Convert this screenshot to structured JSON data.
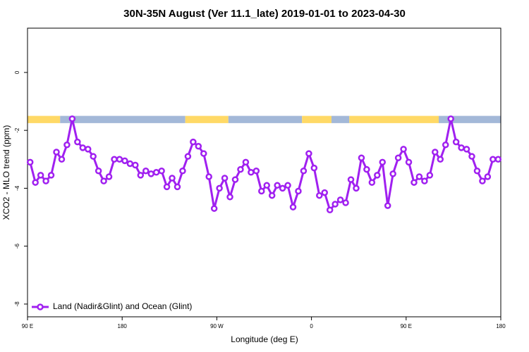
{
  "chart_data": {
    "type": "line",
    "title": "30N-35N August (Ver 11.1_late)   2019-01-01 to 2023-04-30",
    "x_label": "Longitude (deg E)",
    "y_label": "XCO2 - MLO trend (ppm)",
    "x": [
      92.5,
      97.5,
      102.5,
      107.5,
      112.5,
      117.5,
      122.5,
      127.5,
      132.5,
      137.5,
      142.5,
      147.5,
      152.5,
      157.5,
      162.5,
      167.5,
      172.5,
      177.5,
      182.5,
      187.5,
      192.5,
      197.5,
      202.5,
      207.5,
      212.5,
      217.5,
      222.5,
      227.5,
      232.5,
      237.5,
      242.5,
      247.5,
      252.5,
      257.5,
      262.5,
      267.5,
      272.5,
      277.5,
      282.5,
      287.5,
      292.5,
      297.5,
      302.5,
      307.5,
      312.5,
      317.5,
      322.5,
      327.5,
      332.5,
      337.5,
      342.5,
      347.5,
      352.5,
      357.5,
      362.5,
      367.5,
      372.5,
      377.5,
      382.5,
      387.5,
      392.5,
      397.5,
      402.5,
      407.5,
      412.5,
      417.5,
      422.5,
      427.5,
      432.5,
      437.5,
      442.5,
      447.5,
      452.5,
      457.5,
      462.5,
      467.5,
      472.5,
      477.5,
      482.5,
      487.5,
      492.5,
      497.5,
      502.5,
      507.5,
      512.5,
      517.5,
      522.5,
      527.5,
      532.5,
      537.5
    ],
    "series": [
      {
        "name": "Land (Nadir&Glint) and Ocean (Glint)",
        "color": "#a020f0",
        "values": [
          -3.1,
          -3.8,
          -3.55,
          -3.75,
          -3.55,
          -2.75,
          -3.0,
          -2.5,
          -1.6,
          -2.4,
          -2.6,
          -2.65,
          -2.9,
          -3.4,
          -3.75,
          -3.6,
          -3.0,
          -3.0,
          -3.05,
          -3.15,
          -3.2,
          -3.55,
          -3.4,
          -3.5,
          -3.45,
          -3.4,
          -3.95,
          -3.65,
          -3.95,
          -3.4,
          -2.9,
          -2.4,
          -2.55,
          -2.8,
          -3.6,
          -4.7,
          -4.0,
          -3.65,
          -4.3,
          -3.7,
          -3.35,
          -3.1,
          -3.45,
          -3.4,
          -4.1,
          -3.9,
          -4.25,
          -3.9,
          -4.0,
          -3.9,
          -4.65,
          -4.1,
          -3.4,
          -2.8,
          -3.3,
          -4.25,
          -4.15,
          -4.75,
          -4.55,
          -4.4,
          -4.5,
          -3.7,
          -4.0,
          -2.95,
          -3.35,
          -3.8,
          -3.55,
          -3.1,
          -4.6,
          -3.5,
          -2.95,
          -2.65,
          -3.1,
          -3.8,
          -3.6,
          -3.75,
          -3.55,
          -2.75,
          -3.0,
          -2.5,
          -1.6,
          -2.4,
          -2.6,
          -2.65,
          -2.9,
          -3.4,
          -3.75,
          -3.6,
          -3.0,
          -3.0
        ]
      }
    ],
    "band": {
      "y": [
        -1.5,
        -1.75
      ],
      "segments": [
        {
          "x": [
            90,
            121
          ],
          "color": "#ffd966"
        },
        {
          "x": [
            121,
            240
          ],
          "color": "#a3b8d8"
        },
        {
          "x": [
            240,
            281
          ],
          "color": "#ffd966"
        },
        {
          "x": [
            281,
            351
          ],
          "color": "#a3b8d8"
        },
        {
          "x": [
            351,
            379
          ],
          "color": "#ffd966"
        },
        {
          "x": [
            379,
            396
          ],
          "color": "#a3b8d8"
        },
        {
          "x": [
            396,
            481
          ],
          "color": "#ffd966"
        },
        {
          "x": [
            481,
            540
          ],
          "color": "#a3b8d8"
        }
      ]
    },
    "xlim": [
      90,
      540
    ],
    "xticks": [
      {
        "value": 90,
        "label": "90 E"
      },
      180,
      {
        "value": 270,
        "label": "90 W"
      },
      {
        "value": 360,
        "label": "0"
      },
      {
        "value": 450,
        "label": "90 E"
      },
      {
        "value": 540,
        "label": "180"
      }
    ],
    "ylim": [
      -8.44,
      1.53
    ],
    "yticks": [
      0,
      -2,
      -4,
      -6,
      -8
    ],
    "legend": "bottom-left"
  }
}
